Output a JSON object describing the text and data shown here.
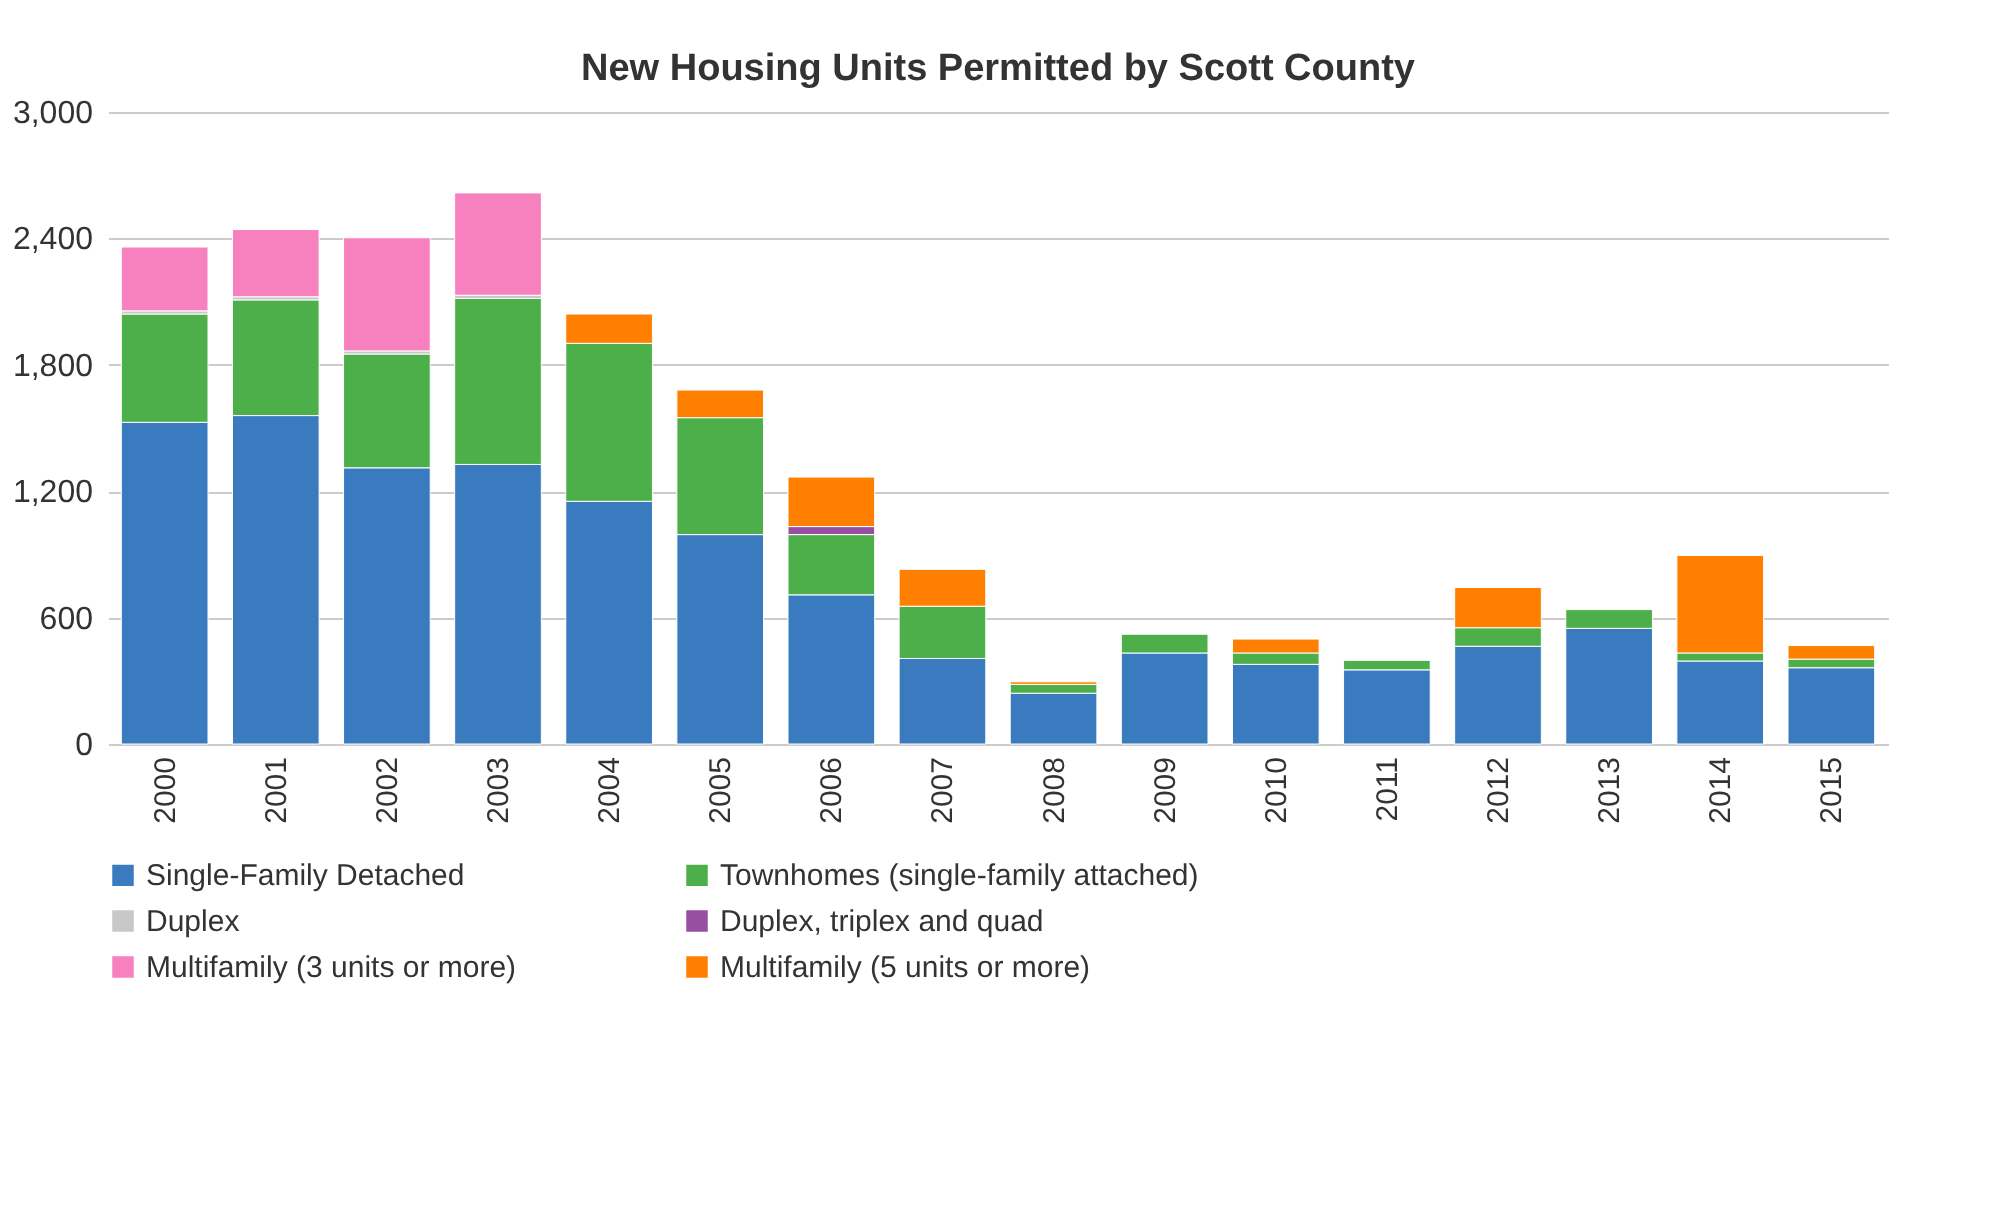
{
  "chart_data": {
    "type": "bar",
    "title": "New Housing Units Permitted by Scott County",
    "categories": [
      "2000",
      "2001",
      "2002",
      "2003",
      "2004",
      "2005",
      "2006",
      "2007",
      "2008",
      "2009",
      "2010",
      "2011",
      "2012",
      "2013",
      "2014",
      "2015"
    ],
    "stacked": true,
    "series": [
      {
        "name": "Single-Family Detached",
        "color": "#3a7bbf",
        "values": [
          1527,
          1559,
          1311,
          1327,
          1152,
          994,
          708,
          406,
          241,
          432,
          378,
          352,
          464,
          549,
          394,
          362
        ]
      },
      {
        "name": "Townhomes (single-family attached)",
        "color": "#4daf4a",
        "values": [
          514,
          549,
          540,
          788,
          750,
          555,
          286,
          248,
          42,
          89,
          54,
          45,
          88,
          89,
          38,
          41
        ]
      },
      {
        "name": "Duplex",
        "color": "#c8c8c8",
        "values": [
          15,
          15,
          15,
          15,
          null,
          null,
          null,
          null,
          null,
          null,
          null,
          null,
          null,
          null,
          null,
          null
        ]
      },
      {
        "name": "Duplex, triplex and quad",
        "color": "#984ea3",
        "values": [
          null,
          null,
          null,
          null,
          null,
          null,
          38,
          null,
          null,
          null,
          null,
          null,
          null,
          null,
          null,
          null
        ]
      },
      {
        "name": "Multifamily (3 units or more)",
        "color": "#f781bf",
        "values": [
          303,
          319,
          537,
          486,
          null,
          null,
          null,
          null,
          null,
          null,
          null,
          null,
          null,
          null,
          null,
          null
        ]
      },
      {
        "name": "Multifamily (5 units or more)",
        "color": "#ff7f00",
        "values": [
          null,
          null,
          null,
          null,
          139,
          131,
          235,
          175,
          12,
          null,
          66,
          null,
          191,
          null,
          463,
          64
        ]
      }
    ],
    "ylim": [
      0,
      3000
    ],
    "yticks": [
      {
        "value": 0,
        "label": "0"
      },
      {
        "value": 600,
        "label": "600"
      },
      {
        "value": 1200,
        "label": "1,200"
      },
      {
        "value": 1800,
        "label": "1,800"
      },
      {
        "value": 2400,
        "label": "2,400"
      },
      {
        "value": 3000,
        "label": "3,000"
      }
    ],
    "grid": "y",
    "legend": "bottom"
  }
}
